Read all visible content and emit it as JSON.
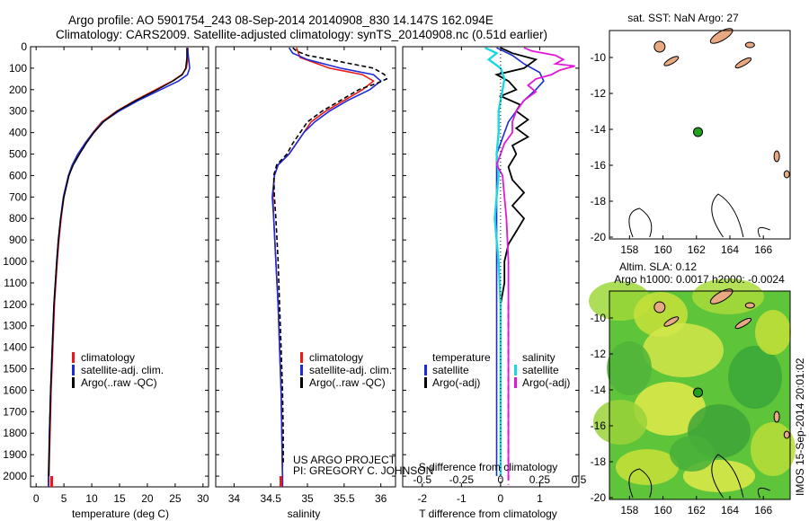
{
  "header": {
    "line1": "Argo profile: AO 5901754_243 08-Sep-2014 20140908_830 14.147S 162.094E",
    "line2": "Climatology: CARS2009. Satellite-adjusted climatology: synTS_20140908.nc (0.51d earlier)"
  },
  "colors": {
    "climatology": "#e8191b",
    "satellite": "#1c2bd6",
    "argo": "#000000",
    "sal_satellite": "#19d8e0",
    "sal_argo": "#e019d8",
    "land": "#e8a882",
    "dot": "#1fa31f"
  },
  "chart_data": [
    {
      "type": "line",
      "panel": "temperature",
      "xlabel": "temperature (deg C)",
      "ylabel": "",
      "xlim": [
        -1,
        31
      ],
      "ylim": [
        2050,
        0
      ],
      "xticks": [
        0,
        5,
        10,
        15,
        20,
        25,
        30
      ],
      "yticks": [
        0,
        100,
        200,
        300,
        400,
        500,
        600,
        700,
        800,
        900,
        1000,
        1100,
        1200,
        1300,
        1400,
        1500,
        1600,
        1700,
        1800,
        1900,
        2000
      ],
      "legend": [
        "climatology",
        "satellite-adj. clim.",
        "Argo(..raw -QC)"
      ],
      "series": [
        {
          "name": "climatology",
          "depth": [
            5,
            50,
            100,
            130,
            160,
            200,
            250,
            300,
            350,
            400,
            450,
            500,
            550,
            600,
            700,
            800,
            900,
            1000,
            1200,
            1400,
            1600,
            1800,
            2000,
            2050
          ],
          "values": [
            27.3,
            27.3,
            27.0,
            26.2,
            24.5,
            21.5,
            17.8,
            14.5,
            11.8,
            10.2,
            8.8,
            7.6,
            6.6,
            5.9,
            5.0,
            4.5,
            4.1,
            3.8,
            3.3,
            3.0,
            2.7,
            2.5,
            2.3,
            2.3
          ]
        },
        {
          "name": "satellite-adj. clim.",
          "depth": [
            5,
            50,
            100,
            130,
            160,
            200,
            250,
            300,
            350,
            400,
            450,
            500,
            550,
            600,
            700,
            800,
            900,
            1000,
            1200,
            1400,
            1600,
            1800,
            2000,
            2050
          ],
          "values": [
            27.2,
            27.4,
            27.6,
            27.2,
            25.6,
            22.4,
            18.4,
            14.9,
            12.0,
            10.3,
            8.8,
            7.5,
            6.5,
            5.8,
            4.9,
            4.4,
            4.0,
            3.7,
            3.2,
            2.9,
            2.6,
            2.4,
            2.2,
            2.2
          ]
        },
        {
          "name": "Argo(..raw -QC)",
          "depth": [
            5,
            50,
            100,
            130,
            160,
            200,
            250,
            300,
            350,
            400,
            450,
            500,
            550,
            600,
            700,
            800,
            900,
            1000,
            1200,
            1400,
            1600,
            1800,
            2000
          ],
          "values": [
            27.1,
            27.1,
            26.9,
            26.3,
            24.6,
            21.8,
            18.0,
            14.6,
            12.1,
            10.4,
            9.0,
            7.8,
            6.7,
            5.9,
            5.0,
            4.4,
            4.0,
            3.7,
            3.2,
            2.9,
            2.6,
            2.4,
            2.3
          ]
        }
      ]
    },
    {
      "type": "line",
      "panel": "salinity",
      "xlabel": "salinity",
      "ylabel": "",
      "xlim": [
        33.75,
        36.2
      ],
      "ylim": [
        2050,
        0
      ],
      "xticks": [
        34,
        34.5,
        35,
        35.5,
        36
      ],
      "legend": [
        "climatology",
        "satellite-adj. clim.",
        "Argo(..raw -QC)"
      ],
      "series": [
        {
          "name": "climatology",
          "depth": [
            5,
            50,
            100,
            130,
            160,
            200,
            250,
            300,
            350,
            400,
            450,
            500,
            550,
            600,
            700,
            800,
            1000,
            1200,
            1400,
            1600,
            1800,
            2000,
            2050
          ],
          "values": [
            34.85,
            34.9,
            35.3,
            35.75,
            35.9,
            35.75,
            35.5,
            35.25,
            35.05,
            34.95,
            34.85,
            34.75,
            34.6,
            34.55,
            34.53,
            34.54,
            34.57,
            34.6,
            34.62,
            34.64,
            34.65,
            34.66,
            34.66
          ]
        },
        {
          "name": "satellite-adj. clim.",
          "depth": [
            5,
            30,
            60,
            100,
            130,
            160,
            200,
            250,
            300,
            350,
            400,
            450,
            500,
            550,
            600,
            700,
            800,
            1000,
            1200,
            1400,
            1600,
            1800,
            2000,
            2050
          ],
          "values": [
            34.75,
            34.8,
            35.0,
            35.45,
            35.9,
            36.0,
            35.85,
            35.55,
            35.3,
            35.1,
            34.95,
            34.85,
            34.75,
            34.6,
            34.55,
            34.52,
            34.54,
            34.57,
            34.6,
            34.62,
            34.64,
            34.65,
            34.66,
            34.66
          ]
        },
        {
          "name": "Argo(..raw -QC)",
          "depth": [
            5,
            20,
            40,
            60,
            80,
            100,
            130,
            150,
            170,
            200,
            250,
            300,
            350,
            400,
            450,
            500,
            550,
            600,
            700,
            800,
            1000,
            1200,
            1400,
            1600,
            1800,
            1950
          ],
          "values": [
            34.8,
            34.85,
            35.0,
            35.3,
            35.6,
            35.9,
            36.05,
            36.08,
            35.95,
            35.7,
            35.45,
            35.2,
            35.0,
            34.9,
            34.8,
            34.72,
            34.58,
            34.54,
            34.55,
            34.57,
            34.6,
            34.62,
            34.64,
            34.66,
            34.67,
            34.67
          ]
        }
      ]
    },
    {
      "type": "line",
      "panel": "difference",
      "xlabel": "T difference from climatology",
      "xlabel_top": "S difference from climatology",
      "xlim": [
        -2.5,
        2.0
      ],
      "ylim": [
        2050,
        0
      ],
      "xticks": [
        -2,
        -1,
        0,
        1
      ],
      "xticks_top_labels": [
        "-0.5",
        "-0.25",
        "0",
        "0.25",
        "0.5"
      ],
      "xticks_top_values": [
        -2,
        -1,
        0,
        1,
        2
      ],
      "legend_left_title": "temperature",
      "legend_left": [
        "satellite",
        "Argo(-adj)"
      ],
      "legend_right_title": "salinity",
      "legend_right": [
        "satellite",
        "Argo(-adj)"
      ],
      "series": [
        {
          "name": "temperature satellite",
          "depth": [
            5,
            40,
            80,
            120,
            160,
            200,
            250,
            300,
            350,
            400,
            450,
            500,
            550,
            600,
            700,
            800,
            900,
            1000,
            1200,
            1500,
            2000
          ],
          "values": [
            -0.1,
            0.3,
            0.6,
            1.0,
            1.1,
            0.9,
            0.6,
            0.4,
            0.2,
            0.1,
            0.0,
            -0.1,
            -0.1,
            -0.1,
            -0.1,
            -0.1,
            -0.1,
            -0.1,
            -0.1,
            -0.1,
            -0.1
          ]
        },
        {
          "name": "temperature Argo(-adj)",
          "depth": [
            5,
            30,
            60,
            100,
            130,
            160,
            200,
            230,
            270,
            300,
            340,
            380,
            420,
            460,
            500,
            560,
            620,
            680,
            740,
            800,
            860,
            920,
            1000,
            1100,
            1200,
            1500,
            2000
          ],
          "values": [
            0.0,
            0.3,
            0.9,
            0.6,
            -0.1,
            0.2,
            0.4,
            0.0,
            0.5,
            0.4,
            0.7,
            0.4,
            0.7,
            0.3,
            0.4,
            0.2,
            0.3,
            0.6,
            0.3,
            0.6,
            0.4,
            0.2,
            0.1,
            0.1,
            0.0,
            0.0,
            0.0
          ]
        },
        {
          "name": "salinity satellite",
          "depth": [
            5,
            30,
            60,
            100,
            150,
            200,
            250,
            300,
            400,
            500,
            600,
            700,
            800,
            900,
            1000,
            1200,
            1500,
            2000
          ],
          "values": [
            -0.4,
            -0.1,
            -0.3,
            0.0,
            0.1,
            0.05,
            0.0,
            -0.05,
            -0.05,
            -0.1,
            -0.05,
            -0.1,
            -0.15,
            -0.1,
            -0.05,
            0.0,
            0.0,
            0.0
          ]
        },
        {
          "name": "salinity Argo(-adj)",
          "depth": [
            5,
            20,
            40,
            60,
            80,
            90,
            100,
            110,
            130,
            150,
            180,
            210,
            250,
            300,
            350,
            400,
            450,
            500,
            550,
            600,
            700,
            800,
            1000,
            1200,
            1500,
            1800,
            2000
          ],
          "values": [
            0.6,
            0.8,
            1.4,
            1.6,
            1.4,
            1.9,
            1.7,
            1.5,
            1.3,
            0.9,
            0.7,
            0.9,
            0.6,
            0.4,
            0.3,
            0.3,
            0.1,
            0.0,
            -0.1,
            0.05,
            0.1,
            0.15,
            0.2,
            0.2,
            0.2,
            0.2,
            0.2
          ]
        }
      ]
    }
  ],
  "maps": {
    "sst": {
      "title": "sat. SST: NaN Argo: 27",
      "xticks": [
        158,
        160,
        162,
        164,
        166
      ],
      "yticks": [
        -10,
        -12,
        -14,
        -16,
        -18,
        -20
      ],
      "xlim": [
        156.8,
        167.6
      ],
      "ylim": [
        -20.1,
        -8.5
      ],
      "argo_position": {
        "lon": 162.094,
        "lat": -14.147
      }
    },
    "sla": {
      "title1": "Altim. SLA: 0.12",
      "title2": "Argo h1000: 0.0017 h2000: -0.0024",
      "xticks": [
        158,
        160,
        162,
        164,
        166
      ],
      "yticks": [
        -10,
        -12,
        -14,
        -16,
        -18,
        -20
      ],
      "xlim": [
        156.8,
        167.6
      ],
      "ylim": [
        -20.1,
        -8.5
      ],
      "argo_position": {
        "lon": 162.094,
        "lat": -14.147
      }
    }
  },
  "credits": {
    "project": "US ARGO PROJECT",
    "pi": "PI: GREGORY C. JOHNSON",
    "stamp": "IMOS 15-Sep-2014 20:01:02"
  }
}
